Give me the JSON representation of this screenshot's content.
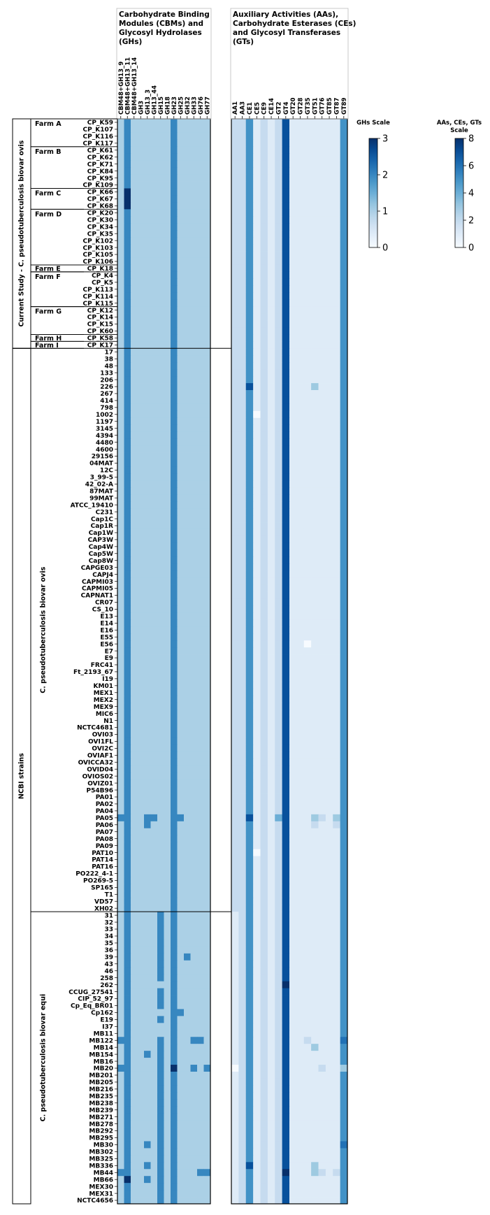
{
  "chart_data": {
    "type": "heatmap",
    "panels": [
      {
        "title": "Carbohydrate Binding Modules (CBMs) and Glycosyl Hydrolases (GHs)",
        "columns": [
          "CBM48+GH13_9",
          "CBM48+GH13_11",
          "CBM48+GH13_14",
          "GH3",
          "GH13_3",
          "GH13_44",
          "GH15",
          "GH18",
          "GH23",
          "GH25",
          "GH32",
          "GH33",
          "GH76",
          "GH77"
        ],
        "base_values": [
          1,
          2,
          1,
          1,
          1,
          1,
          1,
          1,
          2,
          1,
          1,
          1,
          1,
          1
        ],
        "exceptions": [
          {
            "row": "CP_K66",
            "col": "CBM48+GH13_11",
            "value": 3
          },
          {
            "row": "CP_K67",
            "col": "CBM48+GH13_11",
            "value": 3
          },
          {
            "row": "CP_K68",
            "col": "CBM48+GH13_11",
            "value": 3
          },
          {
            "row": "PA05",
            "col": "CBM48+GH13_9",
            "value": 2
          },
          {
            "row": "PA05",
            "col": "GH13_3",
            "value": 2
          },
          {
            "row": "PA05",
            "col": "GH13_44",
            "value": 2
          },
          {
            "row": "PA05",
            "col": "GH25",
            "value": 2
          },
          {
            "row": "PA06",
            "col": "GH13_3",
            "value": 2
          },
          {
            "row": "39",
            "col": "GH32",
            "value": 2
          },
          {
            "row": "Cp162",
            "col": "GH25",
            "value": 2
          },
          {
            "row": "MB122",
            "col": "CBM48+GH13_9",
            "value": 2
          },
          {
            "row": "MB122",
            "col": "GH33",
            "value": 2
          },
          {
            "row": "MB122",
            "col": "GH76",
            "value": 2
          },
          {
            "row": "MB154",
            "col": "GH13_3",
            "value": 2
          },
          {
            "row": "MB20",
            "col": "CBM48+GH13_9",
            "value": 2
          },
          {
            "row": "MB20",
            "col": "GH23",
            "value": 3
          },
          {
            "row": "MB20",
            "col": "GH33",
            "value": 2
          },
          {
            "row": "MB20",
            "col": "GH77",
            "value": 2
          },
          {
            "row": "MB30",
            "col": "GH13_3",
            "value": 2
          },
          {
            "row": "MB336",
            "col": "GH13_3",
            "value": 2
          },
          {
            "row": "MB44",
            "col": "CBM48+GH13_9",
            "value": 2
          },
          {
            "row": "MB44",
            "col": "GH76",
            "value": 2
          },
          {
            "row": "MB44",
            "col": "GH77",
            "value": 2
          },
          {
            "row": "MB66",
            "col": "CBM48+GH13_11",
            "value": 3
          },
          {
            "row": "MB66",
            "col": "GH13_3",
            "value": 2
          }
        ],
        "equi_base_overrides": [
          {
            "col": "GH15",
            "value": 2
          }
        ],
        "equi_gaps": [
          {
            "rows": [
              "262",
              "MB11"
            ],
            "col": "GH15",
            "value": 1
          },
          {
            "rows": [
              "Cp162",
              "I37"
            ],
            "col": "GH15",
            "value": 1
          }
        ],
        "scale": {
          "title": "GHs Scale",
          "min": 0,
          "max": 3,
          "ticks": [
            "0",
            "1",
            "2",
            "3"
          ]
        }
      },
      {
        "title": "Auxiliary Activities (AAs), Carbohydrate Esterases (CEs) and Glycosyl Transferases (GTs)",
        "columns": [
          "AA1",
          "AA3",
          "CE1",
          "CE5",
          "CE9",
          "CE14",
          "GT2",
          "GT4",
          "GT20",
          "GT28",
          "GT35",
          "GT51",
          "GT76",
          "GT85",
          "GT87",
          "GT89"
        ],
        "base_values": [
          2,
          2,
          5,
          1,
          2,
          1,
          2,
          7,
          1,
          1,
          1,
          1,
          1,
          1,
          1,
          5
        ],
        "exceptions": [
          {
            "row": "226",
            "col": "CE1",
            "value": 7
          },
          {
            "row": "226",
            "col": "GT51",
            "value": 3
          },
          {
            "row": "1002",
            "col": "CE5",
            "value": 0
          },
          {
            "row": "E56",
            "col": "GT35",
            "value": 0
          },
          {
            "row": "PA05",
            "col": "CE1",
            "value": 7
          },
          {
            "row": "PA05",
            "col": "GT2",
            "value": 4
          },
          {
            "row": "PA05",
            "col": "GT51",
            "value": 3
          },
          {
            "row": "PA05",
            "col": "GT76",
            "value": 2
          },
          {
            "row": "PA05",
            "col": "GT87",
            "value": 3
          },
          {
            "row": "PA06",
            "col": "GT51",
            "value": 2
          },
          {
            "row": "PA06",
            "col": "GT87",
            "value": 2
          },
          {
            "row": "PAT10",
            "col": "CE5",
            "value": 0
          },
          {
            "row": "262",
            "col": "GT4",
            "value": 8
          },
          {
            "row": "MB122",
            "col": "GT35",
            "value": 2
          },
          {
            "row": "MB122",
            "col": "GT89",
            "value": 6
          },
          {
            "row": "MB14",
            "col": "GT51",
            "value": 3
          },
          {
            "row": "MB20",
            "col": "AA1",
            "value": 0
          },
          {
            "row": "MB20",
            "col": "GT76",
            "value": 2
          },
          {
            "row": "MB20",
            "col": "GT89",
            "value": 3
          },
          {
            "row": "MB30",
            "col": "GT89",
            "value": 6
          },
          {
            "row": "MB336",
            "col": "CE1",
            "value": 7
          },
          {
            "row": "MB336",
            "col": "GT51",
            "value": 3
          },
          {
            "row": "MB44",
            "col": "GT4",
            "value": 8
          },
          {
            "row": "MB44",
            "col": "GT51",
            "value": 3
          },
          {
            "row": "MB44",
            "col": "GT76",
            "value": 2
          },
          {
            "row": "MB44",
            "col": "GT87",
            "value": 2
          }
        ],
        "equi_base_overrides": [
          {
            "col": "AA1",
            "value": 1
          }
        ],
        "scale": {
          "title": "AAs, CEs, GTs Scale",
          "min": 0,
          "max": 8,
          "ticks": [
            "0",
            "2",
            "4",
            "6",
            "8"
          ]
        }
      }
    ],
    "rows": [
      "CP_K59",
      "CP_K107",
      "CP_K116",
      "CP_K117",
      "CP_K61",
      "CP_K62",
      "CP_K71",
      "CP_K84",
      "CP_K95",
      "CP_K109",
      "CP_K66",
      "CP_K67",
      "CP_K68",
      "CP_K20",
      "CP_K30",
      "CP_K34",
      "CP_K35",
      "CP_K102",
      "CP_K103",
      "CP_K105",
      "CP_K106",
      "CP_K18",
      "CP_K4",
      "CP_K5",
      "CP_K113",
      "CP_K114",
      "CP_K115",
      "CP_K12",
      "CP_K14",
      "CP_K15",
      "CP_K60",
      "CP_K58",
      "CP_K17",
      "17",
      "38",
      "48",
      "133",
      "206",
      "226",
      "267",
      "414",
      "798",
      "1002",
      "1197",
      "3145",
      "4394",
      "4480",
      "4600",
      "29156",
      "04MAT",
      "12C",
      "3_99-5",
      "42_02-A",
      "87MAT",
      "99MAT",
      "ATCC_19410",
      "C231",
      "Cap1C",
      "Cap1R",
      "Cap1W",
      "CAP3W",
      "Cap4W",
      "Cap5W",
      "Cap8W",
      "CAPGE03",
      "CAPJ4",
      "CAPMI03",
      "CAPMI05",
      "CAPNAT1",
      "CR07",
      "CS_10",
      "E13",
      "E14",
      "E16",
      "E55",
      "E56",
      "E7",
      "E9",
      "FRC41",
      "Ft_2193_67",
      "I19",
      "KM01",
      "MEX1",
      "MEX2",
      "MEX9",
      "MIC6",
      "N1",
      "NCTC4681",
      "OVI03",
      "OVI1FL",
      "OVI2C",
      "OVIAF1",
      "OVICCA32",
      "OVID04",
      "OVIOS02",
      "OVIZ01",
      "P54B96",
      "PA01",
      "PA02",
      "PA04",
      "PA05",
      "PA06",
      "PA07",
      "PA08",
      "PA09",
      "PAT10",
      "PAT14",
      "PAT16",
      "PO222_4-1",
      "PO269-5",
      "SP165",
      "T1",
      "VD57",
      "XH02",
      "31",
      "32",
      "33",
      "34",
      "35",
      "36",
      "39",
      "43",
      "46",
      "258",
      "262",
      "CCUG_27541",
      "CIP_52_97",
      "Cp_Eq_BR01",
      "Cp162",
      "E19",
      "I37",
      "MB11",
      "MB122",
      "MB14",
      "MB154",
      "MB16",
      "MB20",
      "MB201",
      "MB205",
      "MB216",
      "MB235",
      "MB238",
      "MB239",
      "MB271",
      "MB278",
      "MB292",
      "MB295",
      "MB30",
      "MB302",
      "MB325",
      "MB336",
      "MB44",
      "MB66",
      "MEX30",
      "MEX31",
      "NCTC4656"
    ],
    "farm_groups": [
      {
        "label": "Farm A",
        "start": "CP_K59",
        "end": "CP_K117"
      },
      {
        "label": "Farm B",
        "start": "CP_K61",
        "end": "CP_K109"
      },
      {
        "label": "Farm C",
        "start": "CP_K66",
        "end": "CP_K68"
      },
      {
        "label": "Farm D",
        "start": "CP_K20",
        "end": "CP_K106"
      },
      {
        "label": "Farm E",
        "start": "CP_K18",
        "end": "CP_K18"
      },
      {
        "label": "Farm F",
        "start": "CP_K4",
        "end": "CP_K115"
      },
      {
        "label": "Farm G",
        "start": "CP_K12",
        "end": "CP_K60"
      },
      {
        "label": "Farm H",
        "start": "CP_K58",
        "end": "CP_K58"
      },
      {
        "label": "Farm I",
        "start": "CP_K17",
        "end": "CP_K17"
      }
    ],
    "outer_groups": [
      {
        "label": "Current Study - C. pseudotuberculosis biovar ovis",
        "start": "CP_K59",
        "end": "CP_K17"
      },
      {
        "label": "NCBI strains",
        "start": "17",
        "end": "NCTC4656"
      }
    ],
    "subgroups": [
      {
        "label": "C. pseudotuberculosis biovar ovis",
        "start": "17",
        "end": "XH02"
      },
      {
        "label": "C. pseudotuberculosis biovar equi",
        "start": "31",
        "end": "NCTC4656"
      }
    ]
  }
}
